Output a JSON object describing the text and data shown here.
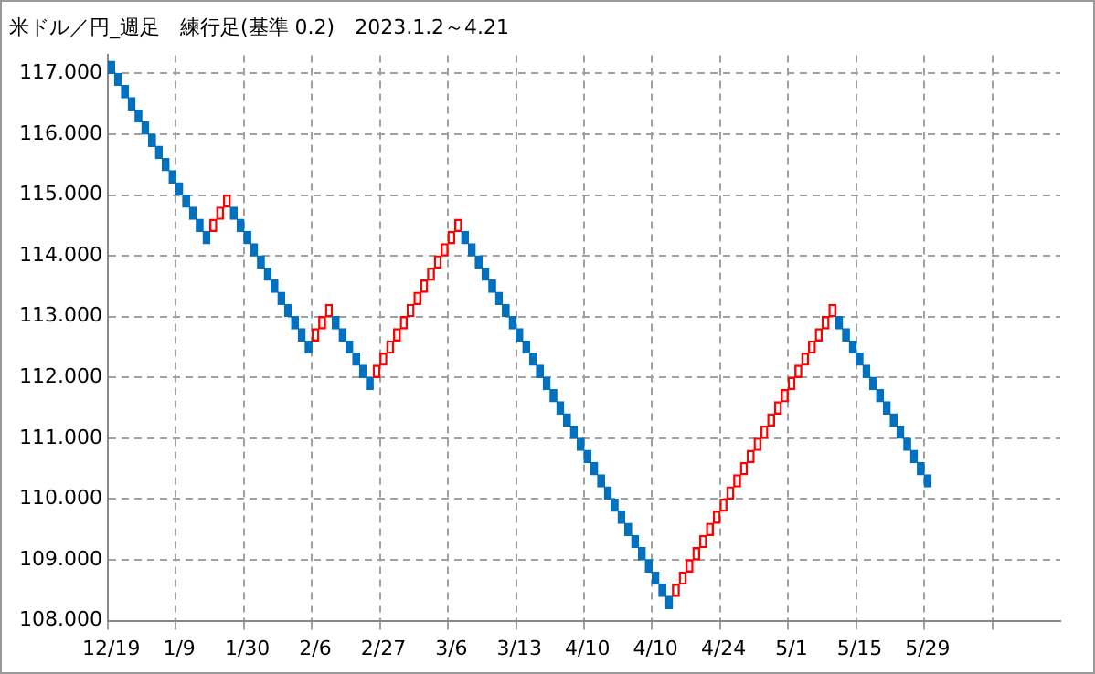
{
  "chart_data": {
    "type": "bar",
    "title": "米ドル／円_週足　練行足(基準 0.2)　2023.1.2～4.21",
    "categories": [
      "12/19",
      null,
      null,
      null,
      null,
      null,
      null,
      null,
      null,
      null,
      "1/9",
      null,
      null,
      null,
      null,
      null,
      null,
      null,
      null,
      null,
      "1/30",
      null,
      null,
      null,
      null,
      null,
      null,
      null,
      null,
      null,
      "2/6",
      null,
      null,
      null,
      null,
      null,
      null,
      null,
      null,
      null,
      "2/27",
      null,
      null,
      null,
      null,
      null,
      null,
      null,
      null,
      null,
      "3/6",
      null,
      null,
      null,
      null,
      null,
      null,
      null,
      null,
      null,
      "3/13",
      null,
      null,
      null,
      null,
      null,
      null,
      null,
      null,
      null,
      "4/10",
      null,
      null,
      null,
      null,
      null,
      null,
      null,
      null,
      null,
      "4/10",
      null,
      null,
      null,
      null,
      null,
      null,
      null,
      null,
      null,
      "4/24",
      null,
      null,
      null,
      null,
      null,
      null,
      null,
      null,
      null,
      "5/1",
      null,
      null,
      null,
      null,
      null,
      null,
      null,
      null,
      null,
      "5/15",
      null,
      null,
      null,
      null,
      null,
      null,
      null,
      null,
      null,
      "5/29",
      null,
      null,
      null,
      null,
      null,
      null,
      null,
      null,
      null,
      null,
      null,
      null,
      null,
      null,
      null,
      null,
      null,
      null,
      null
    ],
    "base": [
      117.2,
      117.0,
      116.8,
      116.6,
      116.4,
      116.2,
      116.0,
      115.8,
      115.6,
      115.4,
      115.2,
      115.0,
      114.8,
      114.6,
      114.4,
      114.4,
      114.6,
      114.8,
      114.8,
      114.6,
      114.4,
      114.2,
      114.0,
      113.8,
      113.6,
      113.4,
      113.2,
      113.0,
      112.8,
      112.6,
      112.6,
      112.8,
      113.0,
      113.0,
      112.8,
      112.6,
      112.4,
      112.2,
      112.0,
      112.0,
      112.2,
      112.4,
      112.6,
      112.8,
      113.0,
      113.2,
      113.4,
      113.6,
      113.8,
      114.0,
      114.2,
      114.4,
      114.4,
      114.2,
      114.0,
      113.8,
      113.6,
      113.4,
      113.2,
      113.0,
      112.8,
      112.6,
      112.4,
      112.2,
      112.0,
      111.8,
      111.6,
      111.4,
      111.2,
      111.0,
      110.8,
      110.6,
      110.4,
      110.2,
      110.0,
      109.8,
      109.6,
      109.4,
      109.2,
      109.0,
      108.8,
      108.6,
      108.4,
      108.4,
      108.6,
      108.8,
      109.0,
      109.2,
      109.4,
      109.6,
      109.8,
      110.0,
      110.2,
      110.4,
      110.6,
      110.8,
      111.0,
      111.2,
      111.4,
      111.6,
      111.8,
      112.0,
      112.2,
      112.4,
      112.6,
      112.8,
      113.0,
      113.0,
      112.8,
      112.6,
      112.4,
      112.2,
      112.0,
      111.8,
      111.6,
      111.4,
      111.2,
      111.0,
      110.8,
      110.6,
      110.4,
      null,
      null,
      null,
      null,
      null,
      null,
      null,
      null,
      null,
      null,
      null,
      null,
      null,
      null,
      null,
      null,
      null,
      null,
      null
    ],
    "values": [
      -0.2,
      -0.2,
      -0.2,
      -0.2,
      -0.2,
      -0.2,
      -0.2,
      -0.2,
      -0.2,
      -0.2,
      -0.2,
      -0.2,
      -0.2,
      -0.2,
      -0.2,
      0.2,
      0.2,
      0.2,
      -0.2,
      -0.2,
      -0.2,
      -0.2,
      -0.2,
      -0.2,
      -0.2,
      -0.2,
      -0.2,
      -0.2,
      -0.2,
      -0.2,
      0.2,
      0.2,
      0.2,
      -0.2,
      -0.2,
      -0.2,
      -0.2,
      -0.2,
      -0.2,
      0.2,
      0.2,
      0.2,
      0.2,
      0.2,
      0.2,
      0.2,
      0.2,
      0.2,
      0.2,
      0.2,
      0.2,
      0.2,
      -0.2,
      -0.2,
      -0.2,
      -0.2,
      -0.2,
      -0.2,
      -0.2,
      -0.2,
      -0.2,
      -0.2,
      -0.2,
      -0.2,
      -0.2,
      -0.2,
      -0.2,
      -0.2,
      -0.2,
      -0.2,
      -0.2,
      -0.2,
      -0.2,
      -0.2,
      -0.2,
      -0.2,
      -0.2,
      -0.2,
      -0.2,
      -0.2,
      -0.2,
      -0.2,
      -0.2,
      0.2,
      0.2,
      0.2,
      0.2,
      0.2,
      0.2,
      0.2,
      0.2,
      0.2,
      0.2,
      0.2,
      0.2,
      0.2,
      0.2,
      0.2,
      0.2,
      0.2,
      0.2,
      0.2,
      0.2,
      0.2,
      0.2,
      0.2,
      0.2,
      -0.2,
      -0.2,
      -0.2,
      -0.2,
      -0.2,
      -0.2,
      -0.2,
      -0.2,
      -0.2,
      -0.2,
      -0.2,
      -0.2,
      -0.2,
      -0.2,
      null,
      null,
      null,
      null,
      null,
      null,
      null,
      null,
      null,
      null,
      null,
      null,
      null,
      null,
      null,
      null,
      null,
      null,
      null
    ],
    "colors": [
      "#0070c0",
      "#0070c0",
      "#0070c0",
      "#0070c0",
      "#0070c0",
      "#0070c0",
      "#0070c0",
      "#0070c0",
      "#0070c0",
      "#0070c0",
      "#0070c0",
      "#0070c0",
      "#0070c0",
      "#0070c0",
      "#0070c0",
      "#ff0000",
      "#ff0000",
      "#ff0000",
      "#0070c0",
      "#0070c0",
      "#0070c0",
      "#0070c0",
      "#0070c0",
      "#0070c0",
      "#0070c0",
      "#0070c0",
      "#0070c0",
      "#0070c0",
      "#0070c0",
      "#0070c0",
      "#ff0000",
      "#ff0000",
      "#ff0000",
      "#0070c0",
      "#0070c0",
      "#0070c0",
      "#0070c0",
      "#0070c0",
      "#0070c0",
      "#ff0000",
      "#ff0000",
      "#ff0000",
      "#ff0000",
      "#ff0000",
      "#ff0000",
      "#ff0000",
      "#ff0000",
      "#ff0000",
      "#ff0000",
      "#ff0000",
      "#ff0000",
      "#ff0000",
      "#0070c0",
      "#0070c0",
      "#0070c0",
      "#0070c0",
      "#0070c0",
      "#0070c0",
      "#0070c0",
      "#0070c0",
      "#0070c0",
      "#0070c0",
      "#0070c0",
      "#0070c0",
      "#0070c0",
      "#0070c0",
      "#0070c0",
      "#0070c0",
      "#0070c0",
      "#0070c0",
      "#0070c0",
      "#0070c0",
      "#0070c0",
      "#0070c0",
      "#0070c0",
      "#0070c0",
      "#0070c0",
      "#0070c0",
      "#0070c0",
      "#0070c0",
      "#0070c0",
      "#0070c0",
      "#0070c0",
      "#ff0000",
      "#ff0000",
      "#ff0000",
      "#ff0000",
      "#ff0000",
      "#ff0000",
      "#ff0000",
      "#ff0000",
      "#ff0000",
      "#ff0000",
      "#ff0000",
      "#ff0000",
      "#ff0000",
      "#ff0000",
      "#ff0000",
      "#ff0000",
      "#ff0000",
      "#ff0000",
      "#ff0000",
      "#ff0000",
      "#ff0000",
      "#ff0000",
      "#ff0000",
      "#ff0000",
      "#0070c0",
      "#0070c0",
      "#0070c0",
      "#0070c0",
      "#0070c0",
      "#0070c0",
      "#0070c0",
      "#0070c0",
      "#0070c0",
      "#0070c0",
      "#0070c0",
      "#0070c0",
      "#0070c0",
      "#0070c0",
      null,
      null,
      null,
      null,
      null,
      null,
      null,
      null,
      null,
      null,
      null,
      null,
      null,
      null,
      null,
      null,
      null,
      null,
      null
    ],
    "ylim": [
      108,
      117.3
    ],
    "yticks": [
      {
        "value": 108,
        "label": "108.000"
      },
      {
        "value": 109,
        "label": "109.000"
      },
      {
        "value": 110,
        "label": "110.000"
      },
      {
        "value": 111,
        "label": "111.000"
      },
      {
        "value": 112,
        "label": "112.000"
      },
      {
        "value": 113,
        "label": "113.000"
      },
      {
        "value": 114,
        "label": "114.000"
      },
      {
        "value": 115,
        "label": "115.000"
      },
      {
        "value": 116,
        "label": "116.000"
      },
      {
        "value": 117,
        "label": "117.000"
      }
    ],
    "grid": true
  }
}
